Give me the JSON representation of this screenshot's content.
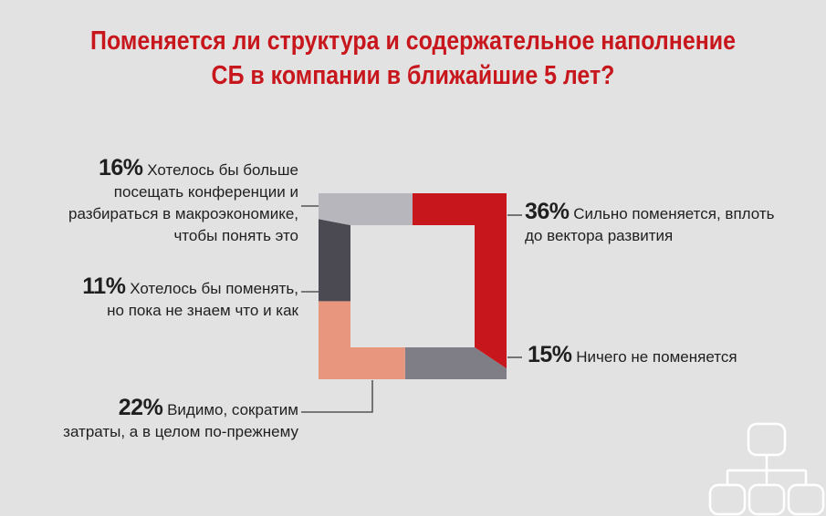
{
  "title_lines": [
    "Поменяется ли структура и содержательное наполнение",
    "СБ в компании в ближайшие 5 лет?"
  ],
  "chart_data": {
    "type": "pie",
    "title": "Поменяется ли структура и содержательное наполнение СБ в компании в ближайшие 5 лет?",
    "segments": [
      {
        "value": 36,
        "pct_label": "36%",
        "lines": [
          "Сильно поменяется, вплоть",
          "до вектора развития"
        ],
        "color": "#c8161d"
      },
      {
        "value": 15,
        "pct_label": "15%",
        "lines": [
          "Ничего не поменяется"
        ],
        "color": "#7f7e86"
      },
      {
        "value": 22,
        "pct_label": "22%",
        "lines": [
          "Видимо, сократим",
          "затраты, а в целом по-прежнему"
        ],
        "color": "#e8977e"
      },
      {
        "value": 11,
        "pct_label": "11%",
        "lines": [
          "Хотелось бы поменять,",
          "но пока не знаем что и как"
        ],
        "color": "#4b4a53"
      },
      {
        "value": 16,
        "pct_label": "16%",
        "lines": [
          "Хотелось бы больше",
          "посещать конференции и",
          "разбираться в макроэкономике,",
          "чтобы понять это"
        ],
        "color": "#b7b6bd"
      }
    ]
  },
  "colors": {
    "title": "#c8161d",
    "leader": "#3a3a3a",
    "icon": "#ffffff"
  },
  "icon": "org-chart-icon"
}
